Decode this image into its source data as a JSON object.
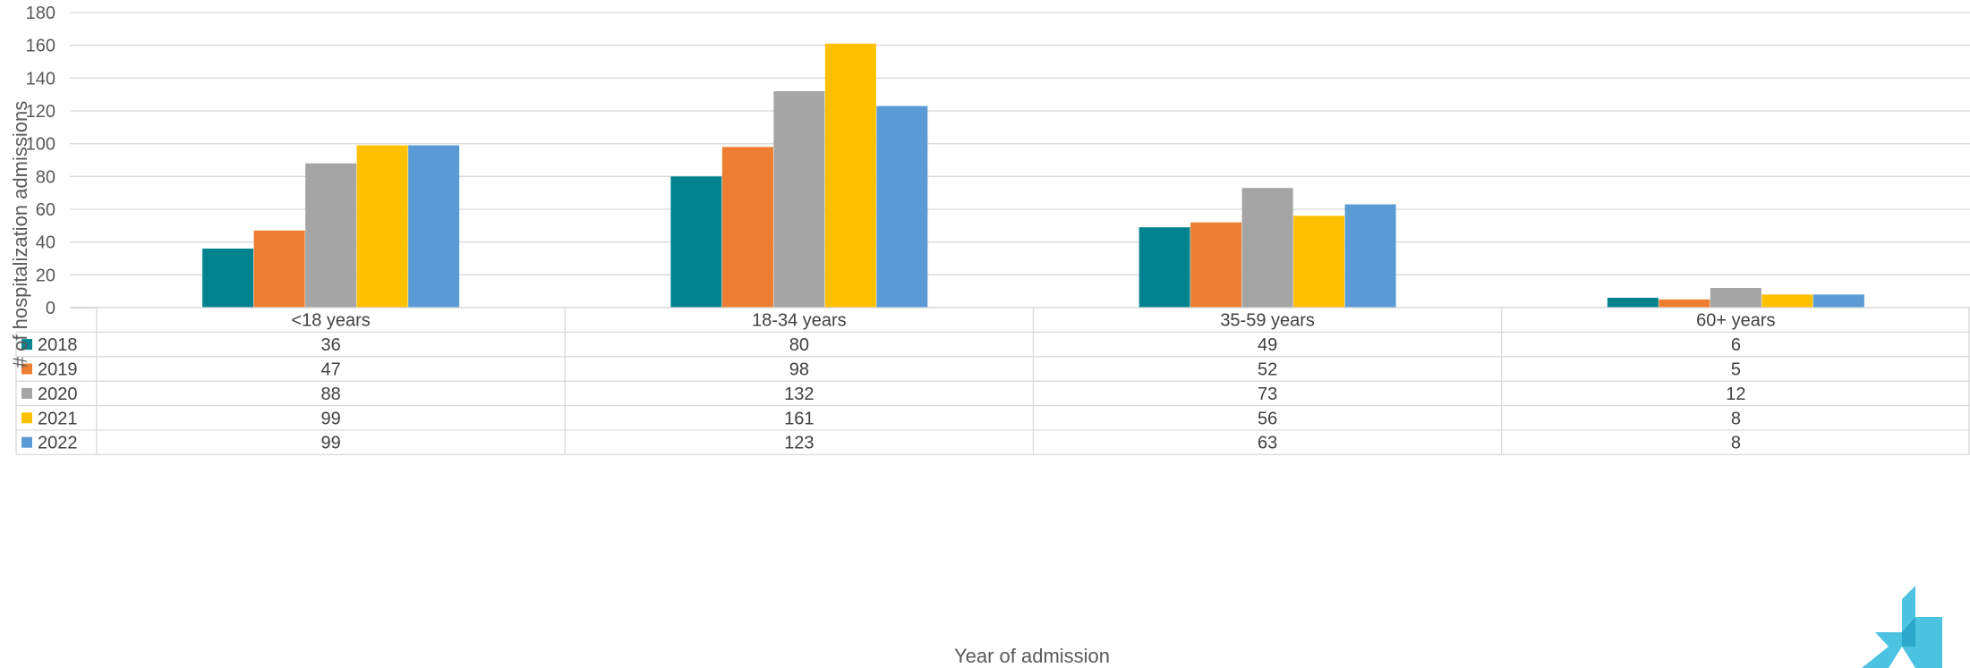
{
  "chart_data": {
    "type": "bar",
    "title": "",
    "xlabel": "Year of admission",
    "ylabel": "# of hospitalization admissions",
    "ylim": [
      0,
      180
    ],
    "yticks": [
      0,
      20,
      40,
      60,
      80,
      100,
      120,
      140,
      160,
      180
    ],
    "grid": true,
    "legend": "data-table",
    "categories": [
      "<18 years",
      "18-34 years",
      "35-59 years",
      "60+ years"
    ],
    "series": [
      {
        "name": "2018",
        "color": "#00838F",
        "values": [
          36,
          80,
          49,
          6
        ]
      },
      {
        "name": "2019",
        "color": "#ED7D31",
        "values": [
          47,
          98,
          52,
          5
        ]
      },
      {
        "name": "2020",
        "color": "#A5A5A5",
        "values": [
          88,
          132,
          73,
          12
        ]
      },
      {
        "name": "2021",
        "color": "#FFC000",
        "values": [
          99,
          161,
          56,
          8
        ]
      },
      {
        "name": "2022",
        "color": "#5B9BD5",
        "values": [
          99,
          123,
          63,
          8
        ]
      }
    ]
  },
  "logo": {
    "icon": "star-logo-icon",
    "color": "#4CC3E0"
  }
}
